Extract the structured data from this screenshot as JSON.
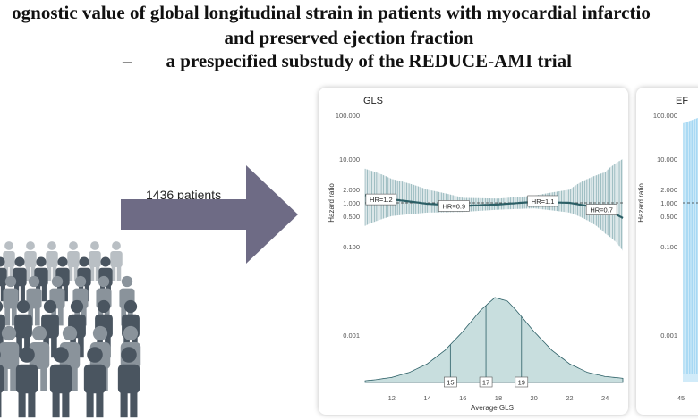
{
  "title": {
    "line1": "ognostic value of global longitudinal strain in patients with myocardial infarctio",
    "line2": "and preserved ejection fraction",
    "line3_dash": "–",
    "line3": "a prespecified substudy of the REDUCE-AMI trial"
  },
  "cohort": {
    "label": "1436 patients",
    "icon": "people-crowd-icon",
    "arrow_icon": "right-arrow-icon"
  },
  "colors": {
    "gls_band": "#3e7c84",
    "gls_line": "#2c5f66",
    "gls_density": "#c8dede",
    "ef_band": "#7cc6ee",
    "crowd_dark": "#4a5560",
    "crowd_mid": "#8a939b",
    "crowd_light": "#b9bfc4",
    "arrow": "#6e6b85"
  },
  "chart_data": [
    {
      "type": "line",
      "title": "GLS",
      "xlabel": "Average GLS",
      "ylabel": "Hazard ratio",
      "xlim": [
        10.5,
        25
      ],
      "x_ticks": [
        12,
        14,
        16,
        18,
        20,
        22,
        24
      ],
      "y_scale": "log",
      "y_ticks": [
        0.1,
        0.5,
        1,
        2,
        10,
        100
      ],
      "y_tick_labels": [
        "0.100",
        "0.500",
        "1.000",
        "2.000",
        "10.000",
        "100.000"
      ],
      "reference_line": 1,
      "density_axis_label": "0.001",
      "series": [
        {
          "x": [
            10.5,
            12,
            14,
            16,
            18,
            20,
            22,
            24,
            25
          ],
          "hr": [
            1.5,
            1.2,
            0.95,
            0.85,
            0.92,
            1.05,
            1.0,
            0.7,
            0.45
          ],
          "ci_low": [
            0.3,
            0.5,
            0.6,
            0.62,
            0.7,
            0.75,
            0.6,
            0.2,
            0.08
          ],
          "ci_high": [
            6,
            3.5,
            2.0,
            1.3,
            1.25,
            1.45,
            2.0,
            5.0,
            10.0
          ]
        }
      ],
      "annotations": [
        {
          "label": "HR=1.2",
          "x": 11.4,
          "y": 1.2
        },
        {
          "label": "HR=0.9",
          "x": 15.5,
          "y": 0.85
        },
        {
          "label": "HR=1.1",
          "x": 20.5,
          "y": 1.1
        },
        {
          "label": "HR=0.7",
          "x": 23.8,
          "y": 0.7
        }
      ],
      "density": {
        "x": [
          10.5,
          11,
          12,
          13,
          14,
          15,
          16,
          17,
          17.8,
          18.5,
          19,
          20,
          21,
          22,
          23,
          24,
          25
        ],
        "y": [
          0.02,
          0.03,
          0.06,
          0.12,
          0.22,
          0.38,
          0.6,
          0.85,
          1.0,
          0.96,
          0.85,
          0.6,
          0.38,
          0.22,
          0.12,
          0.07,
          0.05
        ]
      },
      "quantile_lines": [
        {
          "label": "15",
          "x": 15.3
        },
        {
          "label": "17",
          "x": 17.3
        },
        {
          "label": "19",
          "x": 19.3
        }
      ]
    },
    {
      "type": "line",
      "title": "EF",
      "xlabel": "",
      "ylabel": "Hazard ratio",
      "x_ticks": [
        45
      ],
      "y_scale": "log",
      "y_ticks": [
        0.1,
        0.5,
        1,
        2,
        10,
        100
      ],
      "y_tick_labels": [
        "0.100",
        "0.500",
        "1.000",
        "2.000",
        "10.000",
        "100.000"
      ],
      "reference_line": 1,
      "density_axis_label": "0.001",
      "partial": true
    }
  ]
}
